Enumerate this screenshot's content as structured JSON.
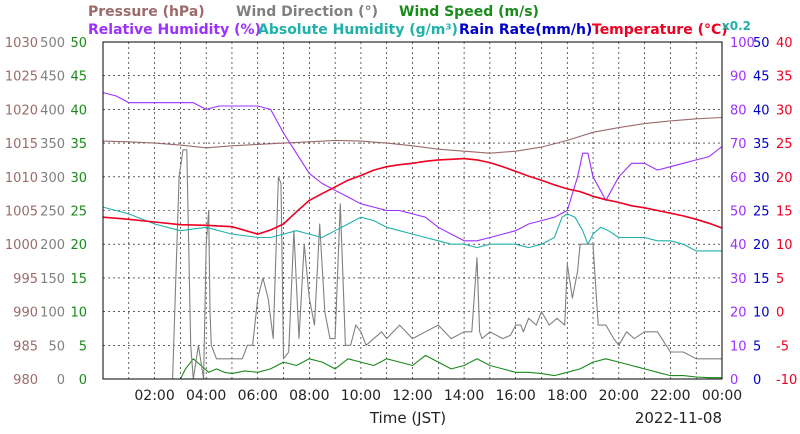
{
  "chart_data": {
    "type": "line",
    "legend": {
      "row1": [
        {
          "name": "Pressure (hPa)",
          "color": "#9b6b6b"
        },
        {
          "name": "Wind Direction (°)",
          "color": "#808080"
        },
        {
          "name": "Wind Speed (m/s)",
          "color": "#1a8a1a"
        }
      ],
      "row2": [
        {
          "name": "Relative Humidity (%)",
          "color": "#9b30ff"
        },
        {
          "name": "Absolute Humidity (g/m³)",
          "color": "#20b2aa"
        },
        {
          "name": "Rain Rate(mm/h)",
          "color": "#0000cc"
        },
        {
          "name": "Temperature (°C)",
          "color": "#ee0022"
        }
      ],
      "note": "x0.2"
    },
    "xlabel": "Time (JST)",
    "date": "2022-11-08",
    "x_range_hours": [
      0,
      24
    ],
    "x_ticks": [
      "02:00",
      "04:00",
      "06:00",
      "08:00",
      "10:00",
      "12:00",
      "14:00",
      "16:00",
      "18:00",
      "20:00",
      "22:00",
      "00:00"
    ],
    "grid": true,
    "axes": {
      "pressure": {
        "unit": "hPa",
        "range": [
          980,
          1030
        ],
        "ticks": [
          "1030",
          "1025",
          "1020",
          "1015",
          "1010",
          "1005",
          "1000",
          "995",
          "990",
          "985",
          "980"
        ],
        "color": "#9b6b6b"
      },
      "wind_direction": {
        "unit": "°",
        "range": [
          0,
          500
        ],
        "ticks": [
          "500",
          "450",
          "400",
          "350",
          "300",
          "250",
          "200",
          "150",
          "100",
          "50",
          "0"
        ],
        "color": "#808080"
      },
      "wind_speed": {
        "unit": "m/s",
        "range": [
          0,
          50
        ],
        "ticks": [
          "50",
          "45",
          "40",
          "35",
          "30",
          "25",
          "20",
          "15",
          "10",
          "5",
          "0"
        ],
        "color": "#1a8a1a"
      },
      "relative_humidity": {
        "unit": "%",
        "range": [
          0,
          100
        ],
        "ticks": [
          "100",
          "90",
          "80",
          "70",
          "60",
          "50",
          "40",
          "30",
          "20",
          "10",
          "0"
        ],
        "color": "#9b30ff"
      },
      "rain_rate": {
        "unit": "mm/h",
        "range": [
          0,
          50
        ],
        "ticks": [
          "50",
          "45",
          "40",
          "35",
          "30",
          "25",
          "20",
          "15",
          "10",
          "5",
          "0"
        ],
        "color": "#0000cc"
      },
      "temperature": {
        "unit": "°C",
        "range": [
          -10,
          40
        ],
        "ticks": [
          "40",
          "35",
          "30",
          "25",
          "20",
          "15",
          "10",
          "5",
          "0",
          "-5",
          "-10"
        ],
        "color": "#ee0022"
      }
    },
    "series": [
      {
        "name": "Pressure (hPa)",
        "axis": "pressure",
        "color": "#9b6b6b",
        "x": [
          0,
          1,
          2,
          3,
          4,
          5,
          6,
          7,
          8,
          9,
          10,
          11,
          12,
          13,
          14,
          15,
          16,
          17,
          18,
          19,
          20,
          21,
          22,
          23,
          24
        ],
        "y": [
          1015.3,
          1015.2,
          1015.0,
          1014.7,
          1014.3,
          1014.6,
          1014.8,
          1015.0,
          1015.2,
          1015.4,
          1015.3,
          1015.0,
          1014.6,
          1014.1,
          1013.8,
          1013.5,
          1013.8,
          1014.4,
          1015.4,
          1016.6,
          1017.3,
          1017.9,
          1018.3,
          1018.6,
          1018.8
        ]
      },
      {
        "name": "Wind Direction (°)",
        "axis": "wind_direction",
        "color": "#808080",
        "x": [
          0,
          2.7,
          2.95,
          3.1,
          3.25,
          3.4,
          3.5,
          3.7,
          3.9,
          4.0,
          4.1,
          4.15,
          4.2,
          4.4,
          4.6,
          4.8,
          5.0,
          5.2,
          5.4,
          5.6,
          5.8,
          6.0,
          6.2,
          6.4,
          6.6,
          6.8,
          6.9,
          7.0,
          7.2,
          7.4,
          7.6,
          7.8,
          8.0,
          8.2,
          8.4,
          8.6,
          8.8,
          9.0,
          9.2,
          9.4,
          9.6,
          9.8,
          10.0,
          10.2,
          10.5,
          10.8,
          11.0,
          11.5,
          12.0,
          12.5,
          13.0,
          13.5,
          14.0,
          14.3,
          14.5,
          14.6,
          14.7,
          15.0,
          15.5,
          15.8,
          16.0,
          16.2,
          16.3,
          16.5,
          16.8,
          17.0,
          17.3,
          17.6,
          17.9,
          18.0,
          18.2,
          18.4,
          18.5,
          18.6,
          18.8,
          19.0,
          19.2,
          19.5,
          19.8,
          20.0,
          20.3,
          20.6,
          21.0,
          21.5,
          22.0,
          22.5,
          23.0,
          23.5,
          24.0
        ],
        "y": [
          0,
          0,
          300,
          340,
          340,
          50,
          0,
          50,
          0,
          200,
          250,
          100,
          50,
          30,
          30,
          30,
          30,
          30,
          30,
          50,
          50,
          120,
          150,
          120,
          60,
          300,
          290,
          30,
          40,
          220,
          60,
          200,
          120,
          80,
          230,
          100,
          60,
          60,
          260,
          50,
          50,
          80,
          70,
          50,
          60,
          70,
          60,
          80,
          60,
          70,
          80,
          60,
          70,
          70,
          180,
          70,
          60,
          70,
          60,
          65,
          80,
          80,
          70,
          90,
          80,
          100,
          80,
          90,
          80,
          170,
          120,
          160,
          200,
          200,
          200,
          200,
          80,
          80,
          60,
          50,
          70,
          60,
          70,
          70,
          40,
          40,
          30,
          30,
          30
        ]
      },
      {
        "name": "Wind Speed (m/s)",
        "axis": "wind_speed",
        "color": "#1a8a1a",
        "x": [
          0,
          3,
          3.2,
          3.5,
          3.8,
          4.1,
          4.4,
          4.7,
          5.0,
          5.5,
          6.0,
          6.5,
          7.0,
          7.5,
          8.0,
          8.5,
          9.0,
          9.5,
          10.0,
          10.5,
          11.0,
          11.5,
          12.0,
          12.5,
          13.0,
          13.5,
          14.0,
          14.5,
          15.0,
          15.5,
          16.0,
          16.5,
          17.0,
          17.5,
          18.0,
          18.5,
          19.0,
          19.5,
          20.0,
          20.5,
          21.0,
          21.5,
          22.0,
          22.5,
          23.0,
          23.5,
          24.0
        ],
        "y": [
          0,
          0,
          1.5,
          3.0,
          2.0,
          1.0,
          1.5,
          1.0,
          0.8,
          1.2,
          1.0,
          1.5,
          2.5,
          2.0,
          3.0,
          2.5,
          1.5,
          3.0,
          2.5,
          2.0,
          3.0,
          2.5,
          2.0,
          3.5,
          2.5,
          1.5,
          2.0,
          3.0,
          2.0,
          1.5,
          1.0,
          1.0,
          0.8,
          0.5,
          1.0,
          1.5,
          2.5,
          3.0,
          2.5,
          2.0,
          1.5,
          1.0,
          0.5,
          0.5,
          0.3,
          0.2,
          0.2
        ]
      },
      {
        "name": "Relative Humidity (%)",
        "axis": "relative_humidity",
        "color": "#9b30ff",
        "x": [
          0,
          0.5,
          1,
          1.5,
          2,
          2.5,
          3,
          3.5,
          4,
          4.5,
          5,
          5.5,
          6,
          6.5,
          7,
          7.5,
          8,
          8.5,
          9,
          9.5,
          10,
          10.5,
          11,
          11.5,
          12,
          12.5,
          13,
          13.5,
          14,
          14.5,
          15,
          15.5,
          16,
          16.5,
          17,
          17.5,
          18,
          18.2,
          18.4,
          18.6,
          18.8,
          19.0,
          19.5,
          20,
          20.5,
          21,
          21.5,
          22,
          22.5,
          23,
          23.5,
          24
        ],
        "y": [
          85,
          84,
          82,
          82,
          82,
          82,
          82,
          82,
          80,
          81,
          81,
          81,
          81,
          80,
          73,
          67,
          61,
          58,
          56,
          54,
          52,
          51,
          50,
          50,
          49,
          48,
          45,
          43,
          41,
          41,
          42,
          43,
          44,
          46,
          47,
          48,
          50,
          55,
          60,
          67,
          67,
          60,
          53,
          60,
          64,
          64,
          62,
          63,
          64,
          65,
          66,
          69
        ]
      },
      {
        "name": "Absolute Humidity (g/m³)",
        "axis": "relative_humidity",
        "color": "#20b2aa",
        "x": [
          0,
          1,
          2,
          3,
          4,
          5,
          6,
          6.5,
          7,
          7.5,
          8,
          8.5,
          9,
          9.5,
          10,
          10.5,
          11,
          11.5,
          12,
          12.5,
          13,
          13.5,
          14,
          14.5,
          15,
          15.5,
          16,
          16.5,
          17,
          17.5,
          17.8,
          18.0,
          18.3,
          18.6,
          18.8,
          19.0,
          19.3,
          19.6,
          20,
          20.5,
          21,
          21.5,
          22,
          22.5,
          23,
          23.5,
          24
        ],
        "y": [
          51,
          49,
          46,
          44,
          45,
          43,
          42,
          42,
          43,
          44,
          43,
          42,
          44,
          46,
          48,
          47,
          45,
          44,
          43,
          42,
          41,
          40,
          40,
          39,
          40,
          40,
          40,
          39,
          40,
          42,
          48,
          49,
          48,
          44,
          40,
          43,
          45,
          44,
          42,
          42,
          42,
          41,
          41,
          40,
          38,
          38,
          38
        ]
      },
      {
        "name": "Temperature (°C)",
        "axis": "temperature",
        "color": "#ee0022",
        "x": [
          0,
          1,
          2,
          3,
          4,
          5,
          6,
          6.5,
          7,
          7.5,
          8,
          8.5,
          9,
          9.5,
          10,
          10.5,
          11,
          11.5,
          12,
          12.5,
          13,
          13.5,
          14,
          14.5,
          15,
          15.5,
          16,
          16.5,
          17,
          17.5,
          18,
          18.5,
          19,
          19.5,
          20,
          20.5,
          21,
          21.5,
          22,
          22.5,
          23,
          23.5,
          24
        ],
        "y": [
          14.0,
          13.7,
          13.3,
          12.9,
          12.8,
          12.6,
          11.5,
          12.1,
          13.0,
          14.8,
          16.5,
          17.5,
          18.5,
          19.5,
          20.2,
          21.0,
          21.5,
          21.8,
          22.0,
          22.3,
          22.5,
          22.6,
          22.7,
          22.5,
          22.1,
          21.5,
          20.8,
          20.1,
          19.5,
          18.8,
          18.2,
          17.8,
          17.1,
          16.6,
          16.2,
          15.7,
          15.4,
          15.0,
          14.6,
          14.2,
          13.7,
          13.1,
          12.4
        ]
      },
      {
        "name": "Rain Rate(mm/h)",
        "axis": "rain_rate",
        "color": "#0000cc",
        "x": [
          0,
          24
        ],
        "y": [
          0,
          0
        ]
      }
    ]
  }
}
